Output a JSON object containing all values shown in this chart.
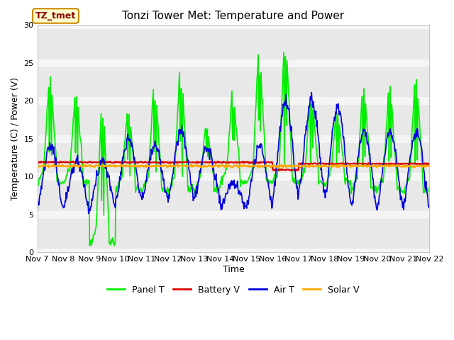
{
  "title": "Tonzi Tower Met: Temperature and Power",
  "xlabel": "Time",
  "ylabel": "Temperature (C) / Power (V)",
  "legend_label": "TZ_tmet",
  "ylim": [
    0,
    30
  ],
  "yticks": [
    0,
    5,
    10,
    15,
    20,
    25,
    30
  ],
  "xtick_labels": [
    "Nov 7",
    "Nov 8",
    "Nov 9",
    "Nov 10",
    "Nov 11",
    "Nov 12",
    "Nov 13",
    "Nov 14",
    "Nov 15",
    "Nov 16",
    "Nov 17",
    "Nov 18",
    "Nov 19",
    "Nov 20",
    "Nov 21",
    "Nov 22"
  ],
  "outer_bg": "#ffffff",
  "plot_bg": "#e8e8e8",
  "grid_color": "#f5f5f5",
  "title_fontsize": 11,
  "axis_fontsize": 9,
  "tick_fontsize": 8,
  "legend_fontsize": 9,
  "panel_t_color": "#00ee00",
  "battery_v_color": "#dd0000",
  "air_t_color": "#0000dd",
  "solar_v_color": "#ffaa00",
  "panel_t_label": "Panel T",
  "battery_v_label": "Battery V",
  "air_t_label": "Air T",
  "solar_v_label": "Solar V",
  "linewidth": 1.2
}
